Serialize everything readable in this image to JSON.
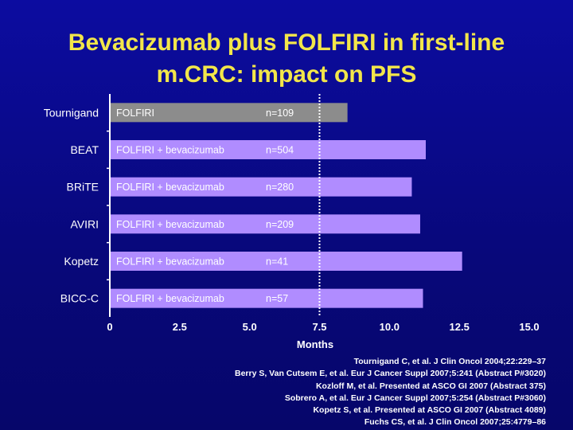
{
  "title_lines": [
    "Bevacizumab plus FOLFIRI in first-line",
    "m.CRC: impact on PFS"
  ],
  "chart_data": {
    "type": "bar",
    "orientation": "horizontal",
    "categories": [
      "Tournigand",
      "BEAT",
      "BRiTE",
      "AVIRI",
      "Kopetz",
      "BICC-C"
    ],
    "values": [
      8.5,
      11.3,
      10.8,
      11.1,
      12.6,
      11.2
    ],
    "bar_labels": [
      "FOLFIRI",
      "FOLFIRI + bevacizumab",
      "FOLFIRI + bevacizumab",
      "FOLFIRI + bevacizumab",
      "FOLFIRI + bevacizumab",
      "FOLFIRI + bevacizumab"
    ],
    "n_labels": [
      "n=109",
      "n=504",
      "n=280",
      "n=209",
      "n=41",
      "n=57"
    ],
    "bar_colors": [
      "#8c8c8c",
      "#b08cff",
      "#b08cff",
      "#b08cff",
      "#b08cff",
      "#b08cff"
    ],
    "xlabel": "Months",
    "xlim": [
      0,
      15.0
    ],
    "xticks": [
      "0",
      "2.5",
      "5.0",
      "7.5",
      "10.0",
      "12.5",
      "15.0"
    ],
    "reference_line_x": 7.5,
    "grid": false
  },
  "references": [
    "Tournigand C, et al. J Clin Oncol 2004;22:229–37",
    "Berry S, Van Cutsem E, et al. Eur J Cancer Suppl 2007;5:241 (Abstract P#3020)",
    "Kozloff M, et al. Presented at ASCO GI 2007 (Abstract 375)",
    "Sobrero A, et al. Eur J Cancer Suppl 2007;5:254 (Abstract P#3060)",
    "Kopetz S, et al. Presented at ASCO GI 2007 (Abstract 4089)",
    "Fuchs CS, et al. J Clin Oncol 2007;25:4779–86"
  ],
  "colors": {
    "background": "#0a0a8c",
    "title": "#f2e64a",
    "text": "#ffffff",
    "reference_line": "#ffffff"
  }
}
